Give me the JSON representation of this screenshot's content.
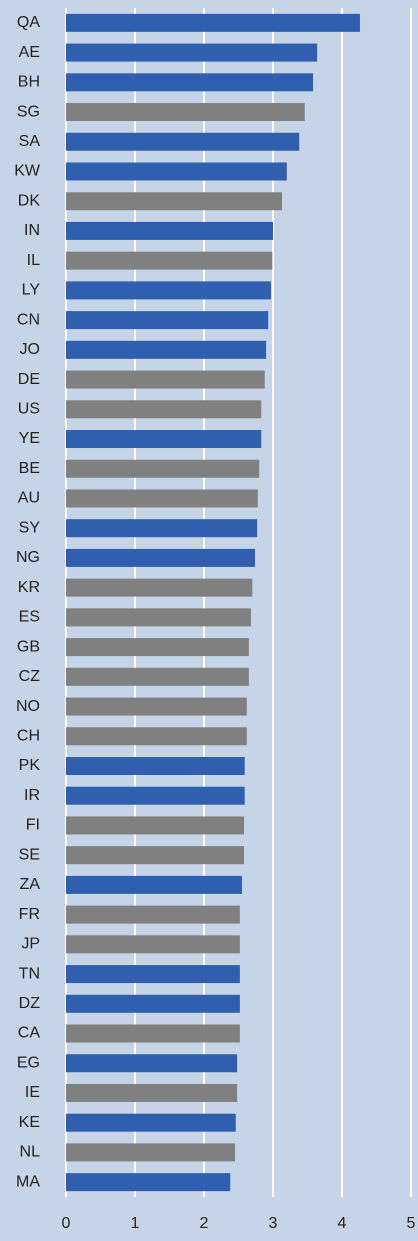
{
  "chart_data": {
    "type": "barh",
    "categories": [
      "QA",
      "AE",
      "BH",
      "SG",
      "SA",
      "KW",
      "DK",
      "IN",
      "IL",
      "LY",
      "CN",
      "JO",
      "DE",
      "US",
      "YE",
      "BE",
      "AU",
      "SY",
      "NG",
      "KR",
      "ES",
      "GB",
      "CZ",
      "NO",
      "CH",
      "PK",
      "IR",
      "FI",
      "SE",
      "ZA",
      "FR",
      "JP",
      "TN",
      "DZ",
      "CA",
      "EG",
      "IE",
      "KE",
      "NL",
      "MA"
    ],
    "values": [
      4.26,
      3.64,
      3.58,
      3.46,
      3.38,
      3.2,
      3.13,
      3.0,
      2.99,
      2.97,
      2.93,
      2.9,
      2.88,
      2.83,
      2.83,
      2.8,
      2.78,
      2.77,
      2.74,
      2.7,
      2.68,
      2.65,
      2.65,
      2.62,
      2.62,
      2.59,
      2.59,
      2.58,
      2.58,
      2.55,
      2.52,
      2.52,
      2.52,
      2.52,
      2.52,
      2.48,
      2.48,
      2.46,
      2.45,
      2.38
    ],
    "colors": [
      "#2f5fae",
      "#2f5fae",
      "#2f5fae",
      "#808080",
      "#2f5fae",
      "#2f5fae",
      "#808080",
      "#2f5fae",
      "#808080",
      "#2f5fae",
      "#2f5fae",
      "#2f5fae",
      "#808080",
      "#808080",
      "#2f5fae",
      "#808080",
      "#808080",
      "#2f5fae",
      "#2f5fae",
      "#808080",
      "#808080",
      "#808080",
      "#808080",
      "#808080",
      "#808080",
      "#2f5fae",
      "#2f5fae",
      "#808080",
      "#808080",
      "#2f5fae",
      "#808080",
      "#808080",
      "#2f5fae",
      "#2f5fae",
      "#808080",
      "#2f5fae",
      "#808080",
      "#2f5fae",
      "#808080",
      "#2f5fae"
    ],
    "xlim": [
      0,
      5
    ],
    "xticks": [
      0,
      1,
      2,
      3,
      4,
      5
    ],
    "grid": true
  }
}
